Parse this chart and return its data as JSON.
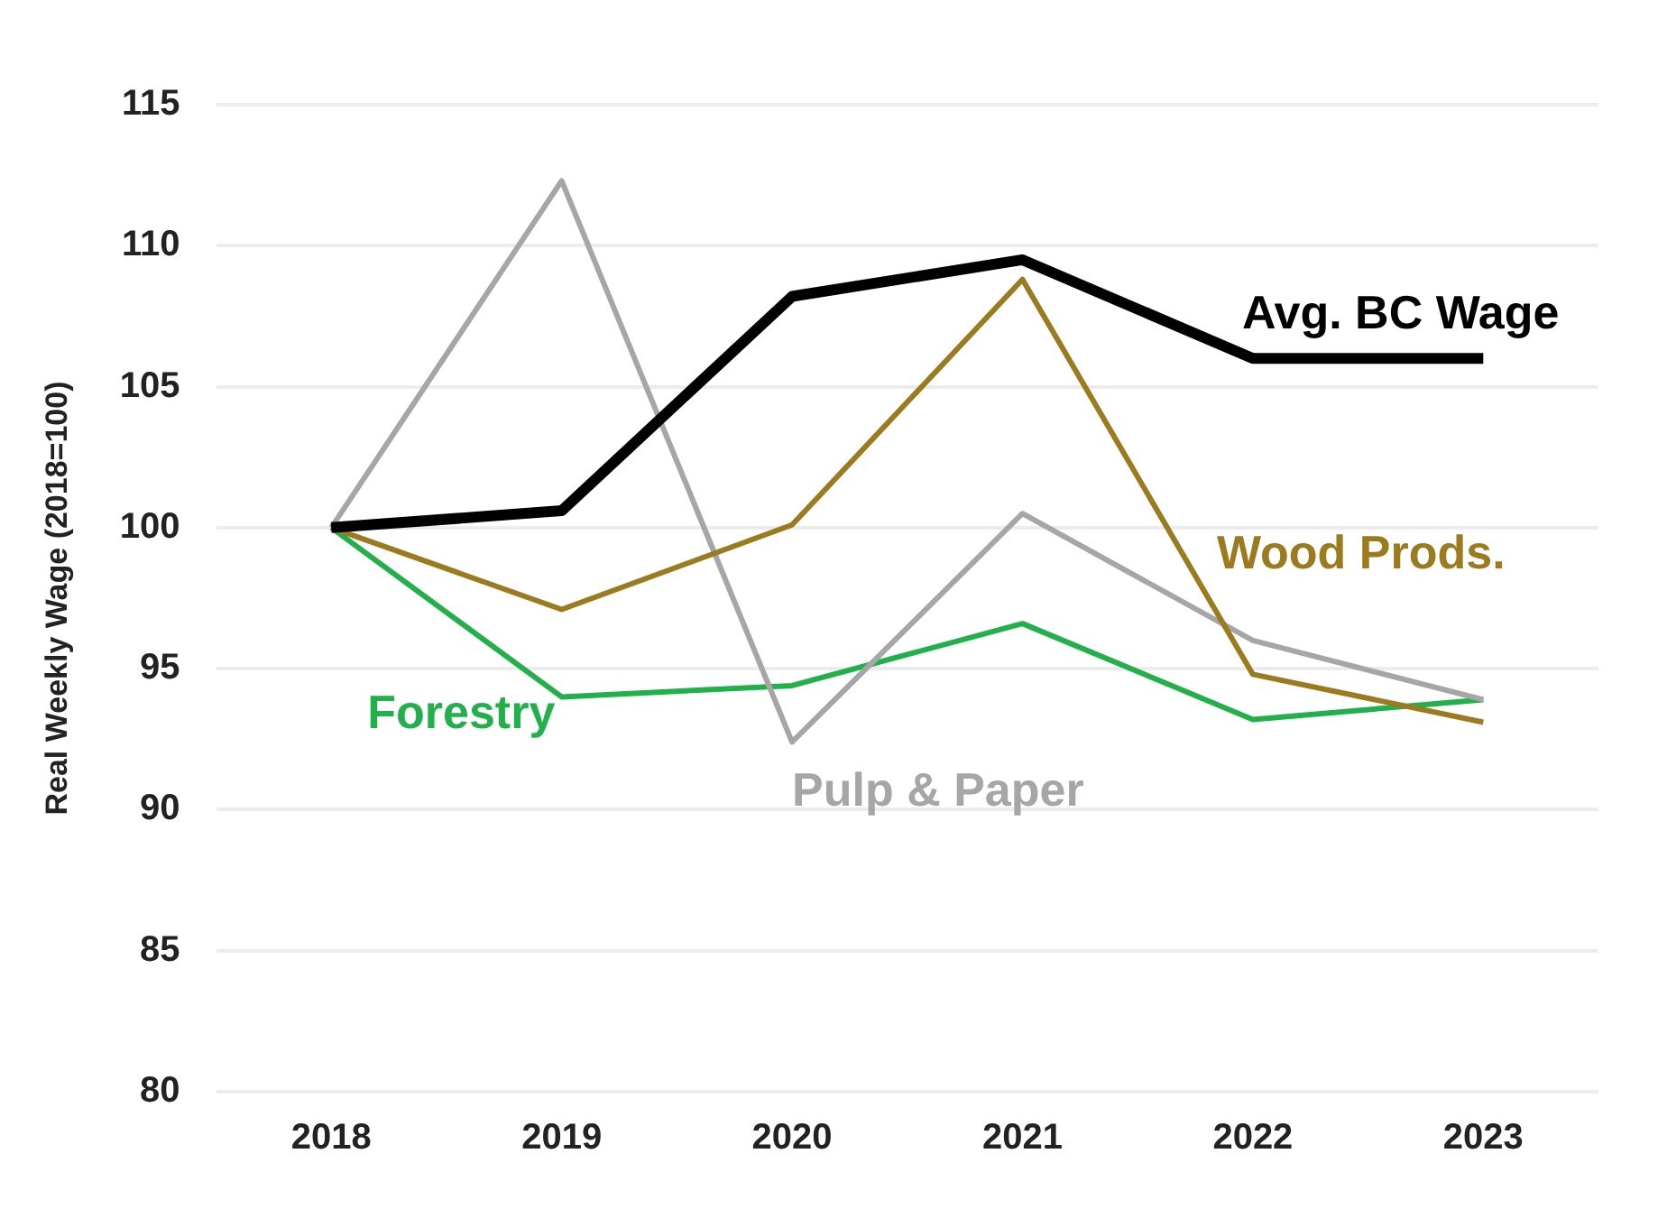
{
  "chart_data": {
    "type": "line",
    "ylabel": "Real Weekly Wage (2018=100)",
    "categories": [
      "2018",
      "2019",
      "2020",
      "2021",
      "2022",
      "2023"
    ],
    "series": [
      {
        "name": "Avg. BC Wage",
        "color": "#000000",
        "values": [
          100,
          100.6,
          108.2,
          109.5,
          106.0,
          106.0
        ]
      },
      {
        "name": "Wood Prods.",
        "color": "#9c7a1e",
        "values": [
          100,
          97.1,
          100.1,
          108.8,
          94.8,
          93.1
        ]
      },
      {
        "name": "Pulp & Paper",
        "color": "#a6a6a6",
        "values": [
          100,
          112.3,
          92.4,
          100.5,
          96.0,
          93.9
        ]
      },
      {
        "name": "Forestry",
        "color": "#22b04b",
        "values": [
          100,
          94.0,
          94.4,
          96.6,
          93.2,
          93.9
        ]
      }
    ],
    "ylim": [
      80,
      115
    ],
    "yticks": [
      80,
      85,
      90,
      95,
      100,
      105,
      110,
      115
    ],
    "grid": "y",
    "legend": false,
    "marker": "none",
    "line_style": "solid"
  }
}
